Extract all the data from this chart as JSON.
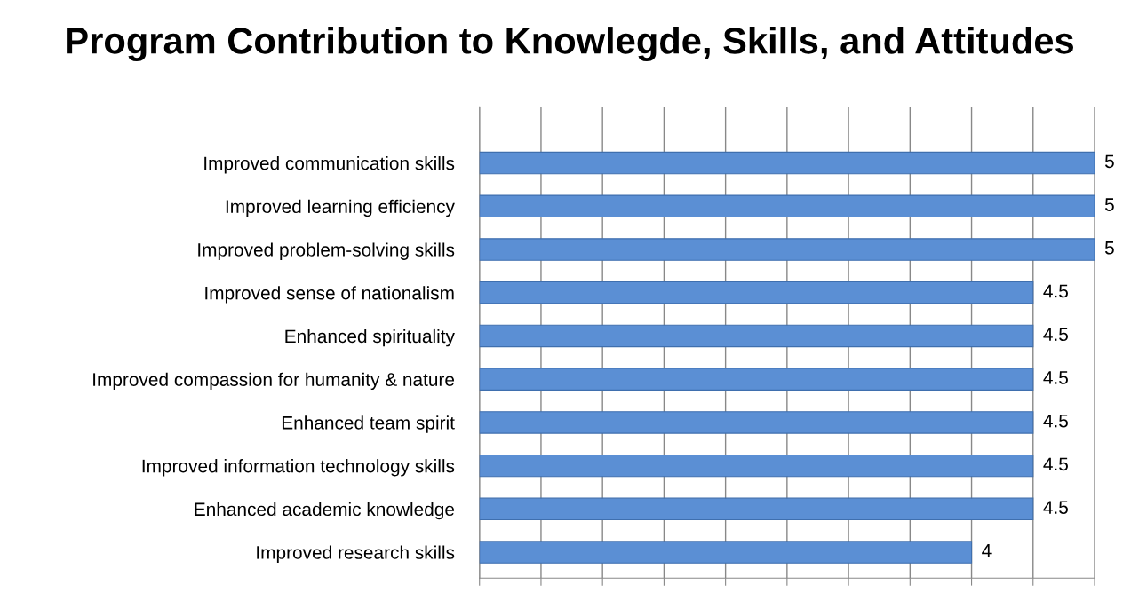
{
  "chart_data": {
    "type": "bar",
    "orientation": "horizontal",
    "title": "Program Contribution to Knowlegde, Skills, and Attitudes",
    "categories": [
      "Improved communication skills",
      "Improved learning efficiency",
      "Improved problem-solving skills",
      "Improved sense of nationalism",
      "Enhanced spirituality",
      "Improved compassion for humanity & nature",
      "Enhanced team spirit",
      "Improved information technology skills",
      "Enhanced academic knowledge",
      "Improved research skills"
    ],
    "values": [
      5,
      5,
      5,
      4.5,
      4.5,
      4.5,
      4.5,
      4.5,
      4.5,
      4
    ],
    "color": "#5b8fd4",
    "xlim": [
      0,
      5
    ],
    "xticks": [
      {
        "value": 0,
        "label": null
      },
      {
        "value": 0.5,
        "label": null
      },
      {
        "value": 1,
        "label": null
      },
      {
        "value": 1.5,
        "label": null
      },
      {
        "value": 2,
        "label": null
      },
      {
        "value": 2.5,
        "label": null
      },
      {
        "value": 3,
        "label": null
      },
      {
        "value": 3.5,
        "label": null
      },
      {
        "value": 4,
        "label": null
      },
      {
        "value": 4.5,
        "label": null
      },
      {
        "value": 5,
        "label": null
      }
    ],
    "tick_labels": "y",
    "grid": "x",
    "data_labels": true
  }
}
